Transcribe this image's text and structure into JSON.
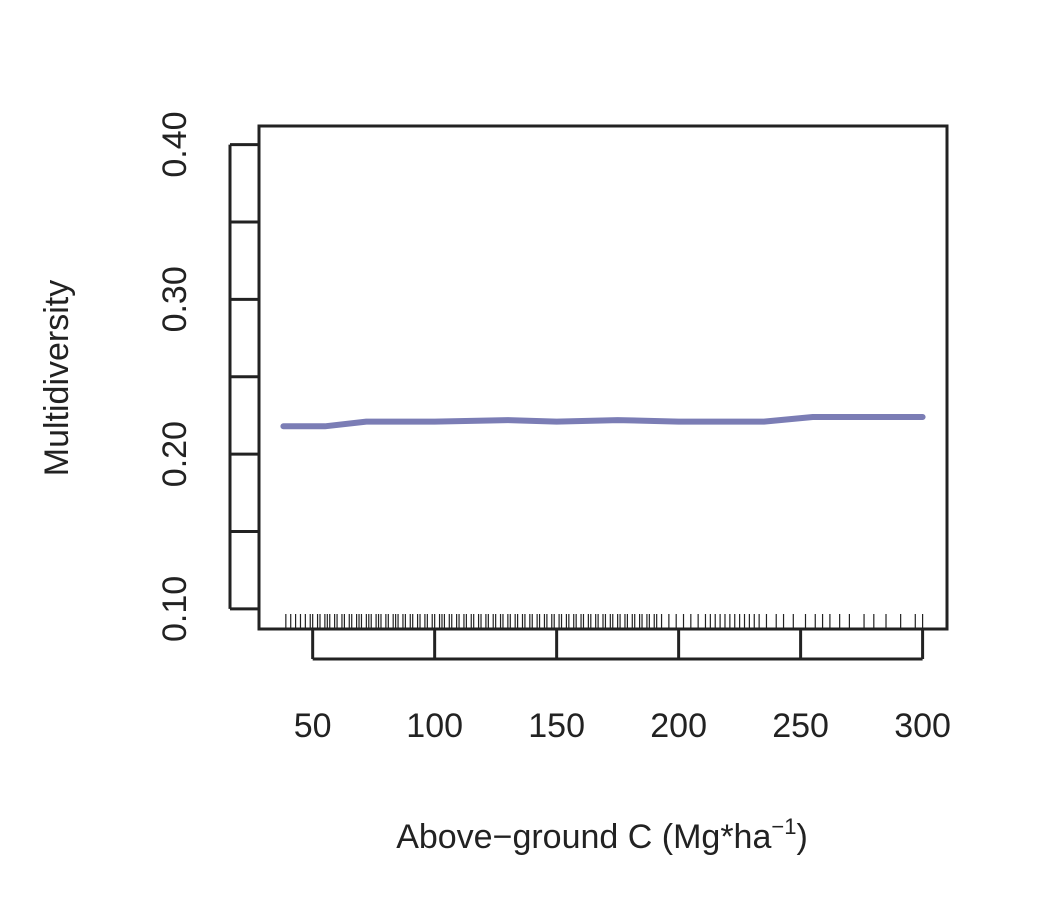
{
  "chart_data": {
    "type": "line",
    "title": "",
    "xlabel": "Above−ground C (Mg*ha",
    "xlabel_sup": "−1",
    "xlabel_close": ")",
    "ylabel": "Multidiversity",
    "xlim": [
      28,
      310
    ],
    "ylim": [
      0.087,
      0.412
    ],
    "x_ticks": [
      50,
      100,
      150,
      200,
      250,
      300
    ],
    "x_tick_labels": [
      "50",
      "100",
      "150",
      "200",
      "250",
      "300"
    ],
    "y_ticks": [
      0.1,
      0.15,
      0.2,
      0.25,
      0.3,
      0.35,
      0.4
    ],
    "y_tick_labels": [
      "0.10",
      "",
      "0.20",
      "",
      "0.30",
      "",
      "0.40"
    ],
    "grid": false,
    "legend": "none",
    "series": [
      {
        "color": "#7b7db5",
        "x": [
          38,
          55,
          72,
          100,
          130,
          150,
          175,
          200,
          235,
          255,
          300
        ],
        "y": [
          0.218,
          0.218,
          0.221,
          0.221,
          0.222,
          0.221,
          0.222,
          0.221,
          0.221,
          0.224,
          0.224
        ]
      }
    ],
    "rug_x": [
      39,
      41,
      43,
      45,
      47,
      49,
      50,
      52,
      53,
      55,
      56,
      57,
      59,
      60,
      62,
      63,
      65,
      66,
      68,
      69,
      70,
      72,
      73,
      74,
      76,
      77,
      78,
      80,
      81,
      83,
      84,
      85,
      87,
      88,
      90,
      91,
      93,
      94,
      96,
      97,
      99,
      100,
      102,
      103,
      104,
      106,
      107,
      109,
      110,
      112,
      113,
      115,
      116,
      118,
      119,
      121,
      122,
      124,
      125,
      127,
      128,
      130,
      131,
      133,
      134,
      136,
      137,
      139,
      140,
      142,
      143,
      145,
      146,
      148,
      149,
      151,
      152,
      154,
      155,
      157,
      158,
      160,
      161,
      163,
      164,
      166,
      167,
      169,
      170,
      172,
      173,
      175,
      176,
      178,
      179,
      181,
      182,
      184,
      185,
      187,
      188,
      190,
      191,
      193,
      196,
      199,
      202,
      205,
      208,
      211,
      213,
      215,
      217,
      219,
      221,
      223,
      225,
      227,
      229,
      231,
      233,
      236,
      240,
      243,
      247,
      252,
      256,
      259,
      262,
      266,
      270,
      276,
      280,
      285,
      291,
      297,
      300
    ]
  }
}
